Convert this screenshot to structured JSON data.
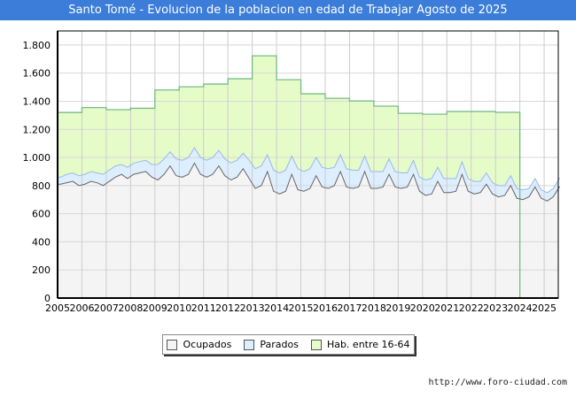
{
  "title": "Santo Tomé - Evolucion de la poblacion en edad de Trabajar Agosto de 2025",
  "url": "http://www.foro-ciudad.com",
  "chart_data": {
    "type": "area",
    "title": "Santo Tomé - Evolucion de la poblacion en edad de Trabajar Agosto de 2025",
    "xlabel": "",
    "ylabel": "",
    "xlim": [
      2005,
      2025.58
    ],
    "ylim": [
      0,
      1900
    ],
    "yticks": [
      0,
      200,
      400,
      600,
      800,
      1000,
      1200,
      1400,
      1600,
      1800
    ],
    "ytick_labels": [
      "0",
      "200",
      "400",
      "600",
      "800",
      "1.000",
      "1.200",
      "1.400",
      "1.600",
      "1.800"
    ],
    "xticks": [
      "2005",
      "2006",
      "2007",
      "2008",
      "2009",
      "2010",
      "2011",
      "2012",
      "2013",
      "2014",
      "2015",
      "2016",
      "2017",
      "2018",
      "2019",
      "2020",
      "2021",
      "2022",
      "2023",
      "2024",
      "2025"
    ],
    "grid": true,
    "legend_position": "bottom",
    "colors": {
      "ocupados": "#f4f4f4",
      "parados": "#ddeeff",
      "hab": "#e6fcc8",
      "hab_line": "#77bb88",
      "parados_line": "#99b8ee",
      "ocupados_line": "#666666"
    },
    "series": [
      {
        "name": "Ocupados",
        "frequency": "quarterly",
        "start": 2005,
        "values": [
          810,
          820,
          830,
          800,
          810,
          830,
          820,
          800,
          830,
          860,
          880,
          850,
          880,
          890,
          900,
          860,
          840,
          880,
          940,
          870,
          860,
          880,
          960,
          880,
          860,
          880,
          940,
          870,
          840,
          860,
          920,
          850,
          780,
          800,
          900,
          760,
          740,
          760,
          880,
          770,
          760,
          780,
          870,
          790,
          780,
          800,
          900,
          790,
          780,
          790,
          900,
          780,
          780,
          790,
          880,
          790,
          780,
          790,
          880,
          760,
          730,
          740,
          830,
          750,
          750,
          760,
          880,
          760,
          740,
          750,
          810,
          740,
          720,
          730,
          800,
          710,
          700,
          720,
          790,
          710,
          690,
          720,
          790
        ]
      },
      {
        "name": "Parados",
        "frequency": "quarterly",
        "start": 2005,
        "values": [
          50,
          60,
          60,
          70,
          70,
          70,
          70,
          80,
          80,
          80,
          70,
          80,
          80,
          80,
          80,
          90,
          110,
          110,
          100,
          120,
          120,
          120,
          110,
          120,
          120,
          120,
          110,
          120,
          120,
          120,
          110,
          130,
          140,
          140,
          120,
          150,
          150,
          150,
          130,
          150,
          140,
          140,
          130,
          140,
          140,
          130,
          120,
          130,
          130,
          120,
          110,
          120,
          120,
          110,
          110,
          110,
          110,
          100,
          100,
          100,
          110,
          110,
          100,
          100,
          100,
          90,
          90,
          90,
          90,
          80,
          80,
          80,
          80,
          70,
          70,
          70,
          70,
          60,
          60,
          60,
          60,
          60,
          60
        ]
      },
      {
        "name": "Hab. entre 16-64",
        "frequency": "yearly",
        "years": [
          2005,
          2006,
          2007,
          2008,
          2009,
          2010,
          2011,
          2012,
          2013,
          2014,
          2015,
          2016,
          2017,
          2018,
          2019,
          2020,
          2021,
          2022,
          2023
        ],
        "values": [
          1320,
          1355,
          1340,
          1350,
          1480,
          1503,
          1522,
          1560,
          1723,
          1553,
          1453,
          1421,
          1402,
          1365,
          1314,
          1308,
          1327,
          1327,
          1321
        ]
      }
    ]
  }
}
